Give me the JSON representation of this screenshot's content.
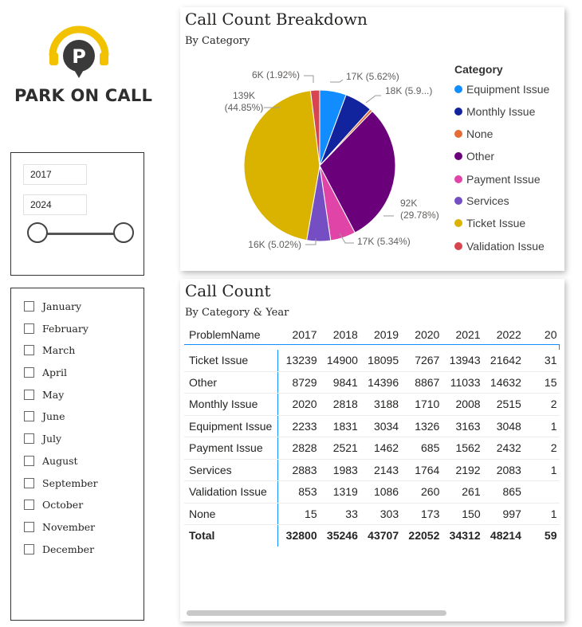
{
  "logo": {
    "text": "PARK ON CALL",
    "icon": "headset-parking-icon",
    "colors": {
      "ring": "#f2c200",
      "letter_bg": "#3a3a3a"
    }
  },
  "year_slicer": {
    "start": "2017",
    "end": "2024"
  },
  "month_slicer": {
    "items": [
      "January",
      "February",
      "March",
      "April",
      "May",
      "June",
      "July",
      "August",
      "September",
      "October",
      "November",
      "December"
    ]
  },
  "pie_card": {
    "title": "Call Count Breakdown",
    "subtitle": "By Category"
  },
  "chart_data": {
    "type": "pie",
    "legend_title": "Category",
    "legend_position": "right",
    "slices": [
      {
        "name": "Equipment Issue",
        "value": 17,
        "label": "17K (5.62%)",
        "pct": 5.62,
        "color": "#118dff"
      },
      {
        "name": "Monthly Issue",
        "value": 18,
        "label": "18K (5.9...)",
        "pct": 5.9,
        "color": "#12239e"
      },
      {
        "name": "None",
        "value": 2,
        "label": "",
        "pct": 0.57,
        "color": "#e66c37"
      },
      {
        "name": "Other",
        "value": 92,
        "label": "92K (29.78%)",
        "pct": 29.78,
        "color": "#6b007b"
      },
      {
        "name": "Payment Issue",
        "value": 17,
        "label": "17K (5.34%)",
        "pct": 5.34,
        "color": "#e044a7"
      },
      {
        "name": "Services",
        "value": 16,
        "label": "16K (5.02%)",
        "pct": 5.02,
        "color": "#744ec2"
      },
      {
        "name": "Ticket Issue",
        "value": 139,
        "label": "139K (44.85%)",
        "pct": 44.85,
        "color": "#d9b300"
      },
      {
        "name": "Validation Issue",
        "value": 6,
        "label": "6K (1.92%)",
        "pct": 1.92,
        "color": "#d64550"
      }
    ]
  },
  "table_card": {
    "title": "Call Count",
    "subtitle": "By Category & Year",
    "columns": [
      "ProblemName",
      "2017",
      "2018",
      "2019",
      "2020",
      "2021",
      "2022",
      "20"
    ],
    "rows": [
      [
        "Ticket Issue",
        "13239",
        "14900",
        "18095",
        "7267",
        "13943",
        "21642",
        "31"
      ],
      [
        "Other",
        "8729",
        "9841",
        "14396",
        "8867",
        "11033",
        "14632",
        "15"
      ],
      [
        "Monthly Issue",
        "2020",
        "2818",
        "3188",
        "1710",
        "2008",
        "2515",
        "2"
      ],
      [
        "Equipment Issue",
        "2233",
        "1831",
        "3034",
        "1326",
        "3163",
        "3048",
        "1"
      ],
      [
        "Payment Issue",
        "2828",
        "2521",
        "1462",
        "685",
        "1562",
        "2432",
        "2"
      ],
      [
        "Services",
        "2883",
        "1983",
        "2143",
        "1764",
        "2192",
        "2083",
        "1"
      ],
      [
        "Validation Issue",
        "853",
        "1319",
        "1086",
        "260",
        "261",
        "865",
        ""
      ],
      [
        "None",
        "15",
        "33",
        "303",
        "173",
        "150",
        "997",
        "1"
      ]
    ],
    "total": [
      "Total",
      "32800",
      "35246",
      "43707",
      "22052",
      "34312",
      "48214",
      "59"
    ]
  }
}
